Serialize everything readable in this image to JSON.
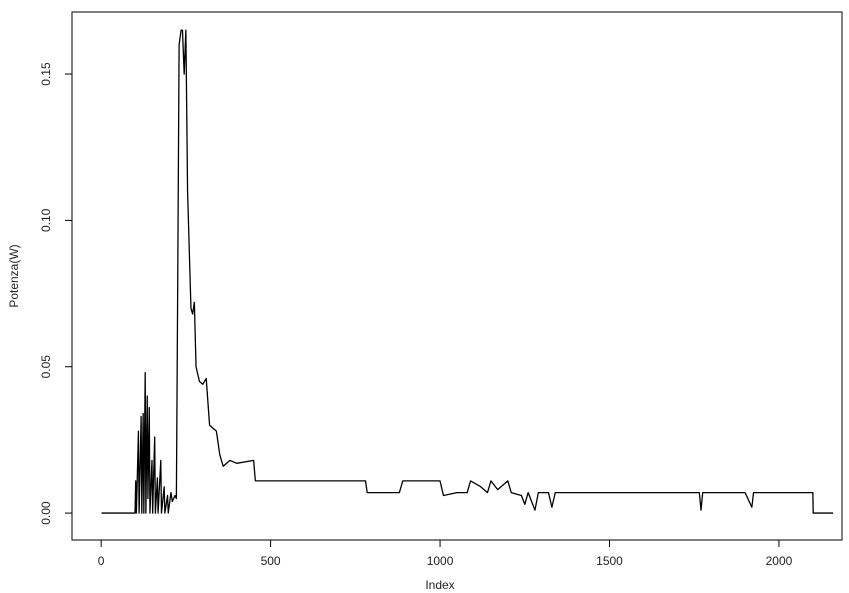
{
  "chart_data": {
    "type": "line",
    "x_label": "Index",
    "y_label": "Potenza(W)",
    "xlim": [
      -86,
      2186
    ],
    "ylim": [
      -0.0092,
      0.1712
    ],
    "xticks": [
      0,
      500,
      1000,
      1500,
      2000
    ],
    "yticks": [
      {
        "value": 0,
        "label": "0.00"
      },
      {
        "value": 0.05,
        "label": "0.05"
      },
      {
        "value": 0.1,
        "label": "0.10"
      },
      {
        "value": 0.15,
        "label": "0.15"
      }
    ],
    "color": "#000000",
    "x": [
      1,
      100,
      102,
      104,
      110,
      112,
      118,
      120,
      124,
      126,
      130,
      132,
      136,
      138,
      142,
      144,
      150,
      152,
      158,
      160,
      166,
      168,
      176,
      178,
      186,
      188,
      196,
      198,
      206,
      210,
      218,
      222,
      226,
      230,
      236,
      240,
      245,
      250,
      255,
      260,
      265,
      270,
      275,
      280,
      290,
      300,
      310,
      320,
      330,
      340,
      350,
      360,
      380,
      400,
      450,
      455,
      500,
      600,
      700,
      780,
      785,
      840,
      880,
      890,
      950,
      1000,
      1010,
      1050,
      1080,
      1090,
      1120,
      1140,
      1150,
      1170,
      1200,
      1210,
      1240,
      1250,
      1260,
      1280,
      1290,
      1320,
      1330,
      1340,
      1400,
      1500,
      1600,
      1700,
      1765,
      1770,
      1775,
      1800,
      1900,
      1920,
      1925,
      2000,
      2100,
      2101,
      2160
    ],
    "values": [
      0,
      0,
      0.011,
      0,
      0.028,
      0,
      0.033,
      0,
      0.034,
      0,
      0.048,
      0,
      0.04,
      0.005,
      0.036,
      0,
      0.018,
      0,
      0.026,
      0,
      0.012,
      0,
      0.018,
      0,
      0.009,
      0,
      0.006,
      0,
      0.007,
      0.004,
      0.006,
      0.005,
      0.08,
      0.16,
      0.165,
      0.165,
      0.15,
      0.165,
      0.11,
      0.09,
      0.07,
      0.068,
      0.072,
      0.05,
      0.045,
      0.044,
      0.046,
      0.03,
      0.029,
      0.028,
      0.02,
      0.016,
      0.018,
      0.017,
      0.018,
      0.011,
      0.011,
      0.011,
      0.011,
      0.011,
      0.007,
      0.007,
      0.007,
      0.011,
      0.011,
      0.011,
      0.006,
      0.007,
      0.007,
      0.011,
      0.009,
      0.007,
      0.011,
      0.008,
      0.011,
      0.007,
      0.006,
      0.003,
      0.007,
      0.001,
      0.007,
      0.007,
      0.002,
      0.007,
      0.007,
      0.007,
      0.007,
      0.007,
      0.007,
      0.001,
      0.007,
      0.007,
      0.007,
      0.002,
      0.007,
      0.007,
      0.007,
      0,
      0
    ]
  }
}
